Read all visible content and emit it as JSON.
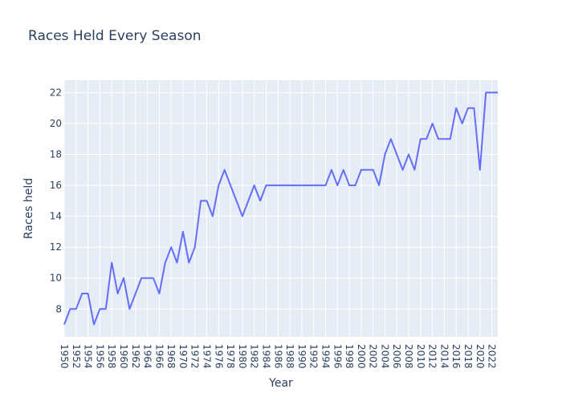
{
  "chart_data": {
    "type": "line",
    "title": "Races Held Every Season",
    "xlabel": "Year",
    "ylabel": "Races held",
    "xlim": [
      1950,
      2023
    ],
    "ylim": [
      6.2,
      22.8
    ],
    "grid": true,
    "legend": "none",
    "x_ticks": [
      1950,
      1952,
      1954,
      1956,
      1958,
      1960,
      1962,
      1964,
      1966,
      1968,
      1970,
      1972,
      1974,
      1976,
      1978,
      1980,
      1982,
      1984,
      1986,
      1988,
      1990,
      1992,
      1994,
      1996,
      1998,
      2000,
      2002,
      2004,
      2006,
      2008,
      2010,
      2012,
      2014,
      2016,
      2018,
      2020,
      2022
    ],
    "y_ticks": [
      8,
      10,
      12,
      14,
      16,
      18,
      20,
      22
    ],
    "colors": {
      "line": "#636efa",
      "plot_bg": "#e5ecf6",
      "grid": "#ffffff",
      "text": "#2a3f5f"
    },
    "series": [
      {
        "x": [
          1950,
          1951,
          1952,
          1953,
          1954,
          1955,
          1956,
          1957,
          1958,
          1959,
          1960,
          1961,
          1962,
          1963,
          1964,
          1965,
          1966,
          1967,
          1968,
          1969,
          1970,
          1971,
          1972,
          1973,
          1974,
          1975,
          1976,
          1977,
          1978,
          1979,
          1980,
          1981,
          1982,
          1983,
          1984,
          1985,
          1986,
          1987,
          1988,
          1989,
          1990,
          1991,
          1992,
          1993,
          1994,
          1995,
          1996,
          1997,
          1998,
          1999,
          2000,
          2001,
          2002,
          2003,
          2004,
          2005,
          2006,
          2007,
          2008,
          2009,
          2010,
          2011,
          2012,
          2013,
          2014,
          2015,
          2016,
          2017,
          2018,
          2019,
          2020,
          2021,
          2022,
          2023
        ],
        "y": [
          7,
          8,
          8,
          9,
          9,
          7,
          8,
          8,
          11,
          9,
          10,
          8,
          9,
          10,
          10,
          10,
          9,
          11,
          12,
          11,
          13,
          11,
          12,
          15,
          15,
          14,
          16,
          17,
          16,
          15,
          14,
          15,
          16,
          15,
          16,
          16,
          16,
          16,
          16,
          16,
          16,
          16,
          16,
          16,
          16,
          17,
          16,
          17,
          16,
          16,
          17,
          17,
          17,
          16,
          18,
          19,
          18,
          17,
          18,
          17,
          19,
          19,
          20,
          19,
          19,
          19,
          21,
          20,
          21,
          21,
          17,
          22,
          22,
          22
        ]
      }
    ]
  }
}
